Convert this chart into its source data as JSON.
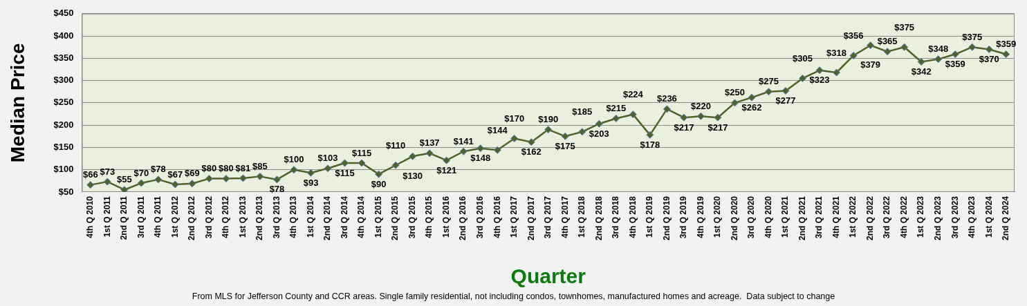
{
  "chart_data": {
    "type": "line",
    "categories": [
      "4th Q 2010",
      "1st Q 2011",
      "2nd Q 2011",
      "3rd Q 2011",
      "4th Q 2011",
      "1st Q 2012",
      "2nd Q 2012",
      "3rd Q 2012",
      "4th Q 2012",
      "1st Q 2013",
      "2nd Q 2013",
      "3rd Q 2013",
      "4th Q 2013",
      "1st Q 2014",
      "2nd Q 2014",
      "3rd Q 2014",
      "4th Q 2014",
      "1st Q 2015",
      "2nd Q 2015",
      "3rd Q 2015",
      "4th Q 2015",
      "1st Q 2016",
      "2nd Q 2016",
      "3rd Q 2016",
      "4th Q 2016",
      "1st Q 2017",
      "2nd Q 2017",
      "3rd Q 2017",
      "4th Q 2017",
      "1st Q 2018",
      "2nd Q 2018",
      "3rd Q 2018",
      "4th Q 2018",
      "1st Q 2019",
      "2nd Q 2019",
      "3rd Q 2019",
      "4th Q 2019",
      "1st Q 2020",
      "2nd Q 2020",
      "3rd Q 2020",
      "4th Q 2020",
      "1st Q 2021",
      "2nd Q 2021",
      "3rd Q 2021",
      "4th Q 2021",
      "1st Q 2022",
      "2nd Q 2022",
      "3rd Q 2022",
      "4th Q 2022",
      "1st Q 2023",
      "2nd Q 2023",
      "3rd Q 2023",
      "4th Q 2023",
      "1st Q 2024",
      "2nd Q 2024"
    ],
    "series": [
      {
        "color": "#4f6228",
        "values": [
          66,
          73,
          55,
          70,
          78,
          67,
          69,
          80,
          80,
          81,
          85,
          78,
          100,
          93,
          103,
          115,
          115,
          90,
          110,
          130,
          137,
          121,
          141,
          148,
          144,
          170,
          162,
          190,
          175,
          185,
          203,
          215,
          224,
          178,
          236,
          217,
          220,
          217,
          250,
          262,
          275,
          277,
          305,
          323,
          318,
          356,
          379,
          365,
          375,
          342,
          348,
          359,
          375,
          370,
          359
        ],
        "value_labels": [
          "$66",
          "$73",
          "$55",
          "$70",
          "$78",
          "$67",
          "$69",
          "$80",
          "$80",
          "$81",
          "$85",
          "$78",
          "$100",
          "$93",
          "$103",
          "$115",
          "$115",
          "$90",
          "$110",
          "$130",
          "$137",
          "$121",
          "$141",
          "$148",
          "$144",
          "$170",
          "$162",
          "$190",
          "$175",
          "$185",
          "$203",
          "$215",
          "$224",
          "$178",
          "$236",
          "$217",
          "$220",
          "$217",
          "$250",
          "$262",
          "$275",
          "$277",
          "$305",
          "$323",
          "$318",
          "$356",
          "$379",
          "$365",
          "$375",
          "$342",
          "$348",
          "$359",
          "$375",
          "$370",
          "$359"
        ]
      }
    ],
    "ylim": [
      50,
      450
    ],
    "yticks": [
      {
        "value": 50,
        "label": "$50"
      },
      {
        "value": 100,
        "label": "$100"
      },
      {
        "value": 150,
        "label": "$150"
      },
      {
        "value": 200,
        "label": "$200"
      },
      {
        "value": 250,
        "label": "$250"
      },
      {
        "value": 300,
        "label": "$300"
      },
      {
        "value": 350,
        "label": "$350"
      },
      {
        "value": 400,
        "label": "$400"
      },
      {
        "value": 450,
        "label": "$450"
      }
    ],
    "xlabel": "Quarter",
    "ylabel": "Median Price",
    "grid": "y",
    "marker": "diamond",
    "line_style": "solid",
    "annotations": [
      "From MLS for Jefferson County and CCR areas. Single family residential, not including condos, townhomes, manufactured homes and acreage.  Data subject to change"
    ]
  }
}
